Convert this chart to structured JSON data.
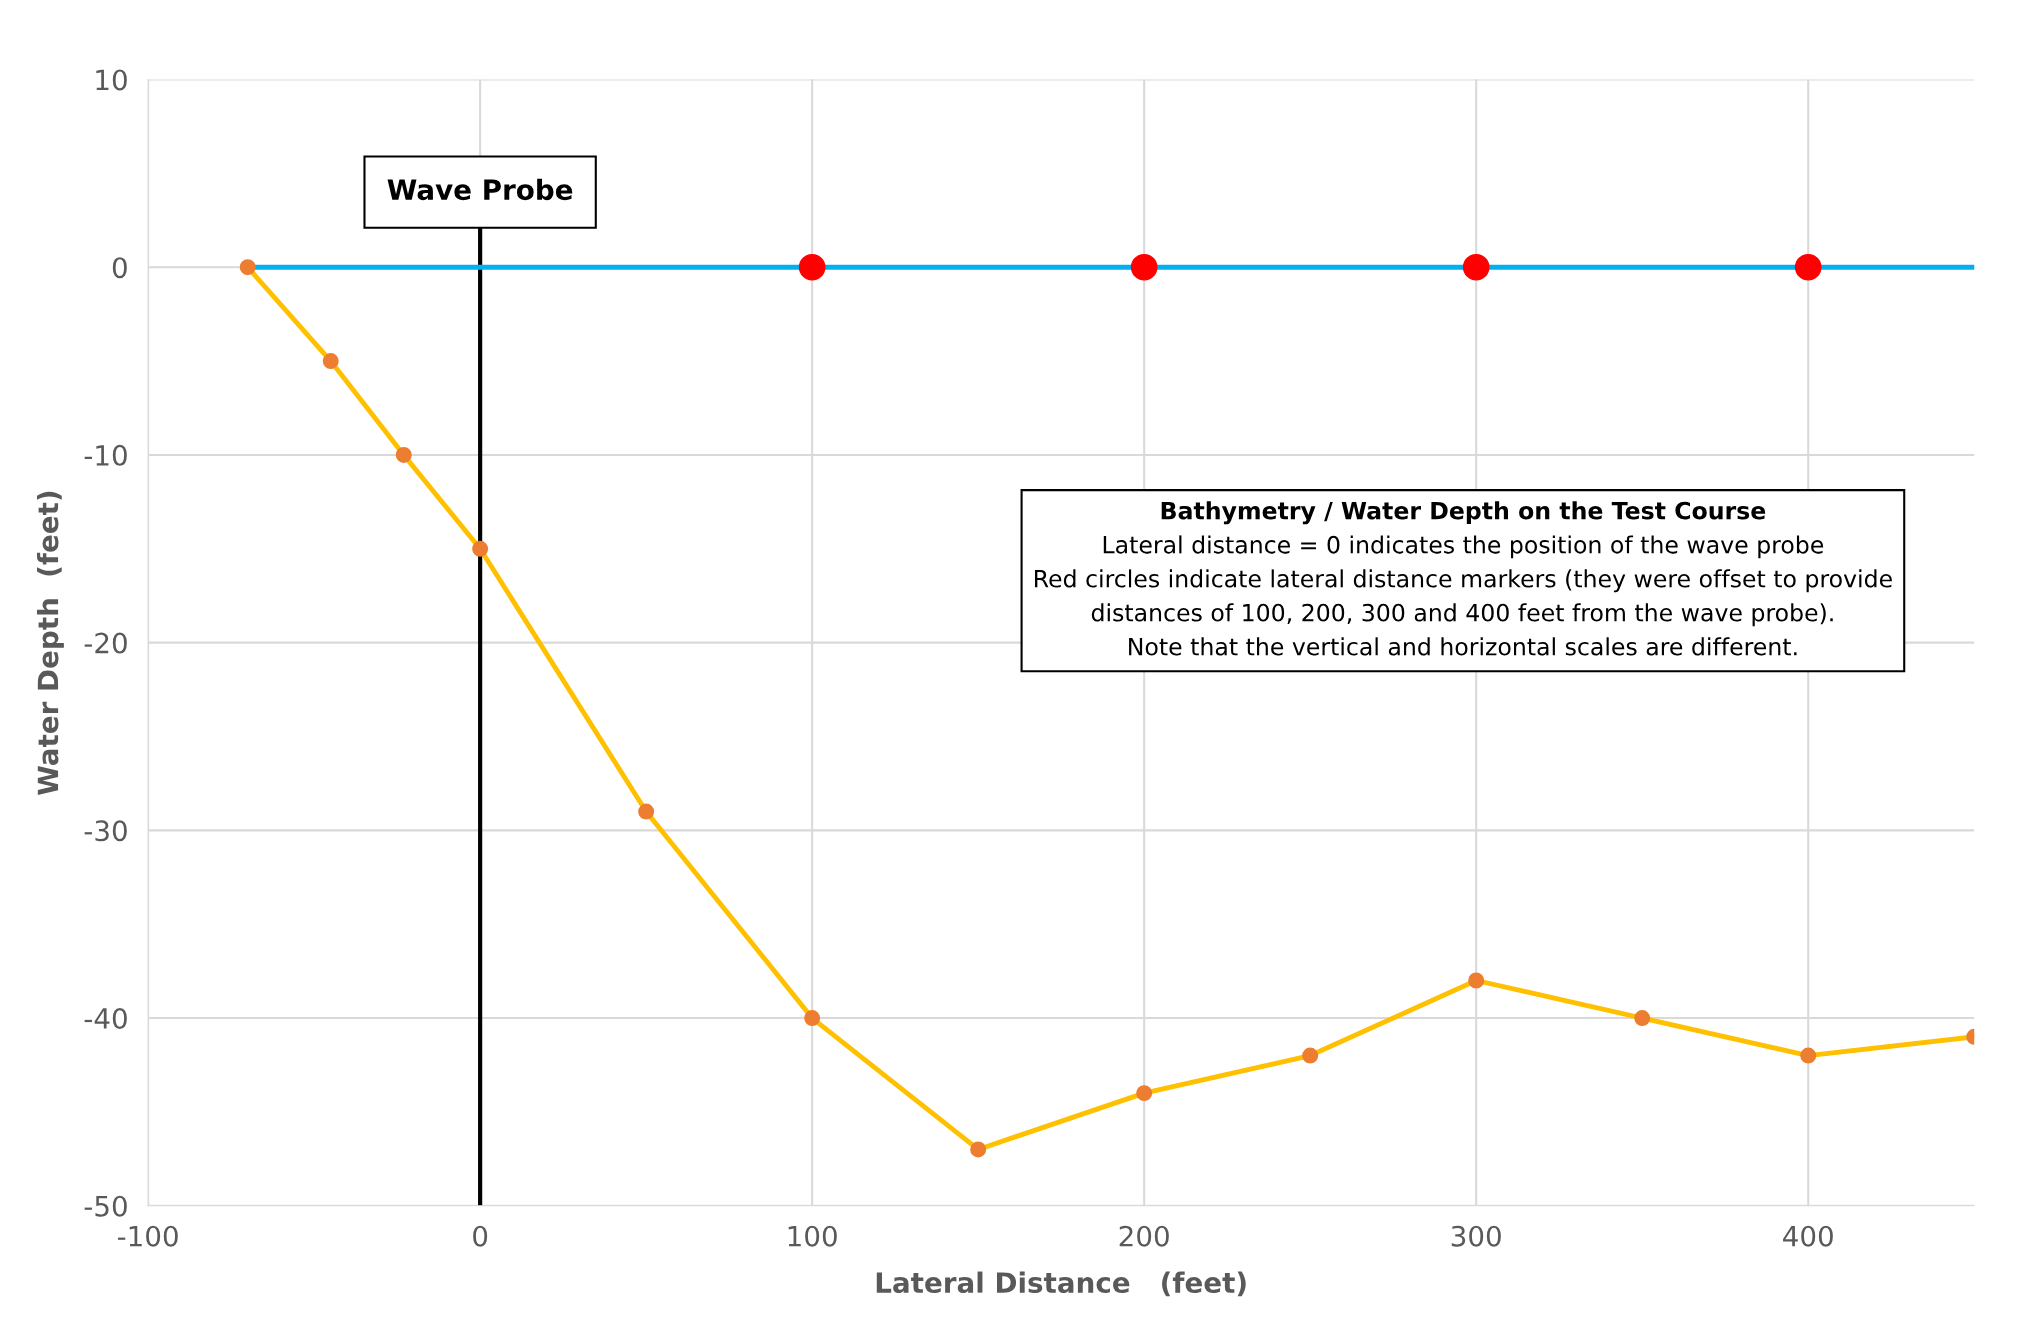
{
  "chart_data": {
    "type": "line",
    "xlabel": "Lateral Distance   (feet)",
    "ylabel": "Water Depth  (feet)",
    "series": [
      {
        "color": "#00b0f0",
        "x": [
          -70,
          450
        ],
        "values": [
          0,
          0
        ],
        "marker": "none"
      },
      {
        "color": "#ffc000",
        "colors": [
          "#ed7d31",
          "#ed7d31",
          "#ed7d31",
          "#ed7d31",
          "#ed7d31",
          "#ed7d31",
          "#ed7d31",
          "#ed7d31",
          "#ed7d31",
          "#ed7d31",
          "#ed7d31",
          "#ed7d31",
          "#ed7d31"
        ],
        "x": [
          -70,
          -45,
          -23,
          0,
          50,
          100,
          150,
          200,
          250,
          300,
          350,
          400,
          450
        ],
        "values": [
          0,
          -5,
          -10,
          -15,
          -29,
          -40,
          -47,
          -44,
          -42,
          -38,
          -40,
          -42,
          -41
        ],
        "marker": "circle"
      },
      {
        "type": "scatter",
        "color": "#ff0000",
        "x": [
          100,
          200,
          300,
          400
        ],
        "values": [
          0,
          0,
          0,
          0
        ],
        "marker": "circle"
      }
    ],
    "ref_lines": [
      {
        "axis": "x",
        "value": 0,
        "label": "Wave Probe",
        "color": "#000000"
      }
    ],
    "annotations": [
      "Bathymetry / Water Depth on the Test Course",
      "Lateral distance = 0 indicates the position of the wave probe",
      "Red circles indicate lateral distance markers (they were offset to provide",
      "distances of 100, 200, 300 and 400 feet from the wave probe).",
      "Note that the vertical and horizontal scales are different."
    ],
    "xlim": [
      -100,
      450
    ],
    "ylim": [
      -50,
      10
    ],
    "xticks": [
      -100,
      0,
      100,
      200,
      300,
      400
    ],
    "yticks": [
      -50,
      -40,
      -30,
      -20,
      -10,
      0,
      10
    ],
    "grid": true,
    "legend": false
  }
}
